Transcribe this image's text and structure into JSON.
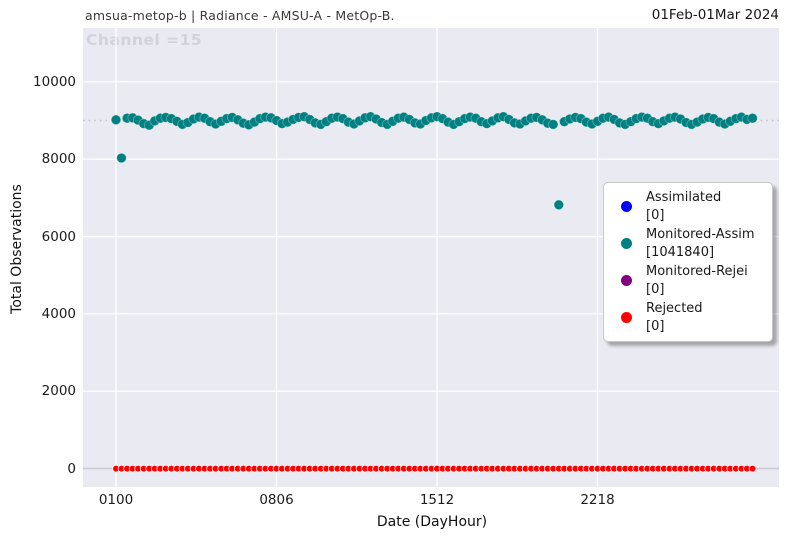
{
  "header": {
    "title_left": "amsua-metop-b  |  Radiance - AMSU-A - MetOp-B.",
    "title_right": "01Feb-01Mar 2024"
  },
  "watermark": "Channel =15",
  "legend": {
    "items": [
      {
        "label": "Assimilated",
        "count_label": "[0]",
        "color": "#0000ff"
      },
      {
        "label": "Monitored-Assim",
        "count_label": "[1041840]",
        "color": "#008080"
      },
      {
        "label": "Monitored-Rejei",
        "count_label": "[0]",
        "color": "#800080"
      },
      {
        "label": "Rejected",
        "count_label": "[0]",
        "color": "#ff0000"
      }
    ]
  },
  "chart_data": {
    "type": "scatter",
    "title": "",
    "xlabel": "Date (DayHour)",
    "ylabel": "Total Observations",
    "background": "#eaeaf2",
    "grid": true,
    "legend_position": "right",
    "ylim": [
      -465,
      11400
    ],
    "y_ticks": [
      0,
      2000,
      4000,
      6000,
      8000,
      10000
    ],
    "x_tick_labels": [
      "0100",
      "0806",
      "1512",
      "2218"
    ],
    "x_tick_idx": [
      0,
      29,
      58,
      87
    ],
    "reference_lines": [
      {
        "y": 9000,
        "style": "dotted",
        "color": "#c6c6c6"
      },
      {
        "y": 0,
        "style": "solid",
        "color": "#c9c9cf"
      }
    ],
    "categories": [
      "0100",
      "0106",
      "0112",
      "0118",
      "0200",
      "0206",
      "0212",
      "0218",
      "0300",
      "0306",
      "0312",
      "0318",
      "0400",
      "0406",
      "0412",
      "0418",
      "0500",
      "0506",
      "0512",
      "0518",
      "0600",
      "0606",
      "0612",
      "0618",
      "0700",
      "0706",
      "0712",
      "0718",
      "0800",
      "0806",
      "0812",
      "0818",
      "0900",
      "0906",
      "0912",
      "0918",
      "1000",
      "1006",
      "1012",
      "1018",
      "1100",
      "1106",
      "1112",
      "1118",
      "1200",
      "1206",
      "1212",
      "1218",
      "1300",
      "1306",
      "1312",
      "1318",
      "1400",
      "1406",
      "1412",
      "1418",
      "1500",
      "1506",
      "1512",
      "1518",
      "1600",
      "1606",
      "1612",
      "1618",
      "1700",
      "1706",
      "1712",
      "1718",
      "1800",
      "1806",
      "1812",
      "1818",
      "1900",
      "1906",
      "1912",
      "1918",
      "2000",
      "2006",
      "2012",
      "2018",
      "2100",
      "2106",
      "2112",
      "2118",
      "2200",
      "2206",
      "2212",
      "2218",
      "2300",
      "2306",
      "2312",
      "2318",
      "2400",
      "2406",
      "2412",
      "2418",
      "2500",
      "2506",
      "2512",
      "2518",
      "2600",
      "2606",
      "2612",
      "2618",
      "2700",
      "2706",
      "2712",
      "2718",
      "2800",
      "2806",
      "2812",
      "2818",
      "2900",
      "2906",
      "2912",
      "2918"
    ],
    "series": [
      {
        "name": "Assimilated",
        "count": 0,
        "color": "#0000ff",
        "values": []
      },
      {
        "name": "Monitored-Assim",
        "count": 1041840,
        "color": "#008080",
        "values": [
          9020,
          8030,
          9060,
          9070,
          9010,
          8920,
          8880,
          8990,
          9060,
          9080,
          9050,
          8980,
          8900,
          8950,
          9040,
          9090,
          9060,
          8970,
          8910,
          8980,
          9050,
          9080,
          9020,
          8930,
          8890,
          8960,
          9050,
          9090,
          9070,
          9000,
          8920,
          8960,
          9030,
          9080,
          9100,
          9030,
          8940,
          8900,
          8970,
          9060,
          9090,
          9050,
          8960,
          8910,
          8990,
          9070,
          9100,
          9040,
          8950,
          8900,
          8980,
          9060,
          9090,
          9030,
          8940,
          8910,
          9000,
          9070,
          9100,
          9050,
          8960,
          8900,
          8970,
          9050,
          9090,
          9060,
          8970,
          8920,
          8990,
          9070,
          9100,
          9030,
          8940,
          8910,
          8990,
          9060,
          9080,
          9020,
          8930,
          8900,
          6820,
          8970,
          9040,
          9080,
          9050,
          8960,
          8910,
          8980,
          9060,
          9090,
          9030,
          8940,
          8900,
          8970,
          9050,
          9090,
          9060,
          8970,
          8920,
          8990,
          9060,
          9090,
          9040,
          8950,
          8900,
          8960,
          9040,
          9080,
          9050,
          8960,
          8910,
          8980,
          9050,
          9090,
          9030,
          9060
        ]
      },
      {
        "name": "Monitored-Rejei",
        "count": 0,
        "color": "#800080",
        "values": []
      },
      {
        "name": "Rejected",
        "count": 0,
        "color": "#ff0000",
        "values": [
          0,
          0,
          0,
          0,
          0,
          0,
          0,
          0,
          0,
          0,
          0,
          0,
          0,
          0,
          0,
          0,
          0,
          0,
          0,
          0,
          0,
          0,
          0,
          0,
          0,
          0,
          0,
          0,
          0,
          0,
          0,
          0,
          0,
          0,
          0,
          0,
          0,
          0,
          0,
          0,
          0,
          0,
          0,
          0,
          0,
          0,
          0,
          0,
          0,
          0,
          0,
          0,
          0,
          0,
          0,
          0,
          0,
          0,
          0,
          0,
          0,
          0,
          0,
          0,
          0,
          0,
          0,
          0,
          0,
          0,
          0,
          0,
          0,
          0,
          0,
          0,
          0,
          0,
          0,
          0,
          0,
          0,
          0,
          0,
          0,
          0,
          0,
          0,
          0,
          0,
          0,
          0,
          0,
          0,
          0,
          0,
          0,
          0,
          0,
          0,
          0,
          0,
          0,
          0,
          0,
          0,
          0,
          0,
          0,
          0,
          0,
          0,
          0,
          0,
          0,
          0
        ]
      }
    ]
  }
}
